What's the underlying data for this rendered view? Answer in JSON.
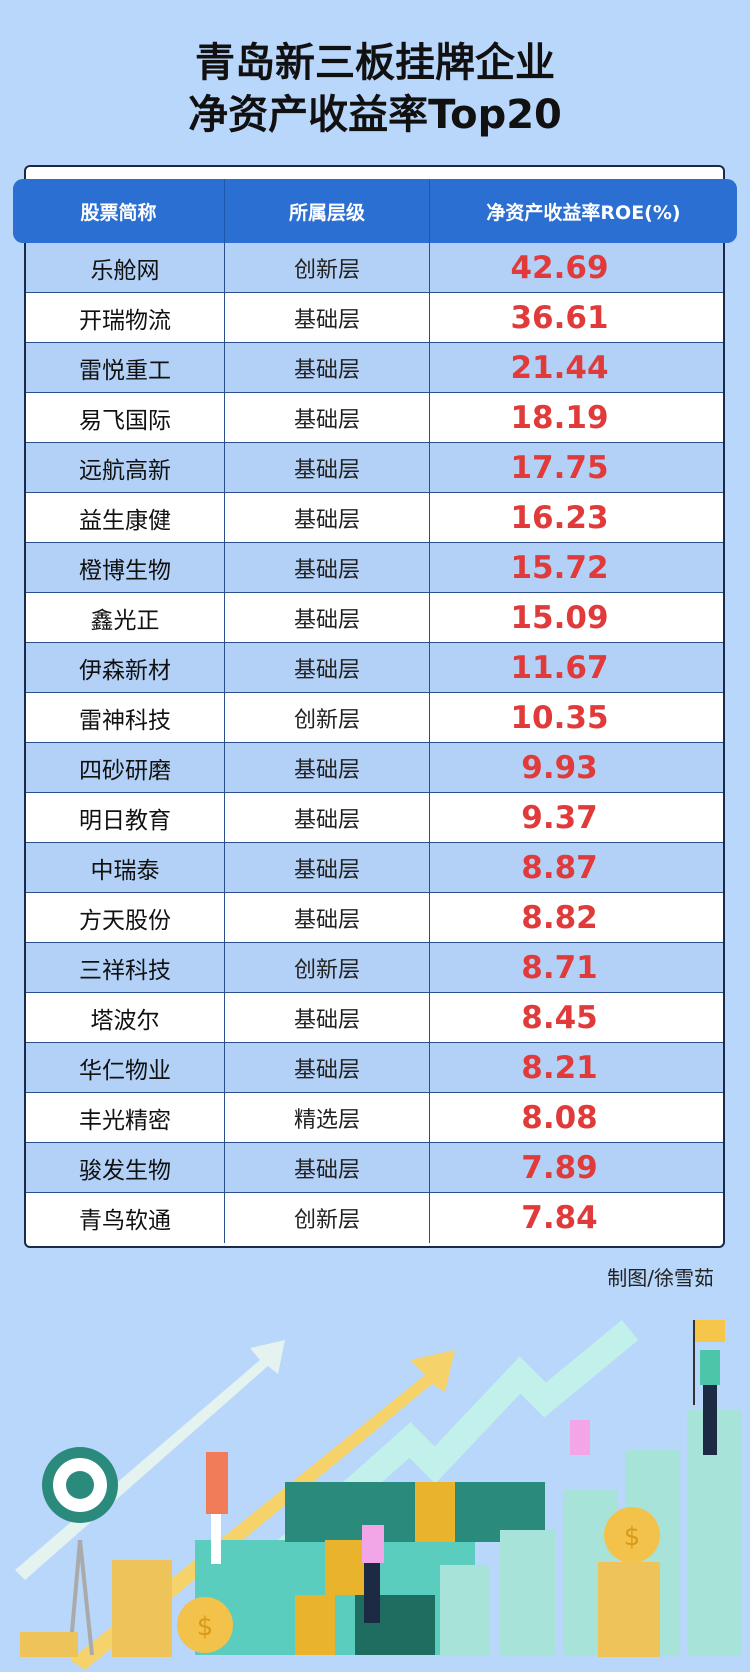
{
  "title": {
    "line1": "青岛新三板挂牌企业",
    "line2": "净资产收益率Top20"
  },
  "table": {
    "headers": [
      "股票简称",
      "所属层级",
      "净资产收益率ROE(%)"
    ],
    "rows": [
      {
        "name": "乐舱网",
        "tier": "创新层",
        "roe": "42.69"
      },
      {
        "name": "开瑞物流",
        "tier": "基础层",
        "roe": "36.61"
      },
      {
        "name": "雷悦重工",
        "tier": "基础层",
        "roe": "21.44"
      },
      {
        "name": "易飞国际",
        "tier": "基础层",
        "roe": "18.19"
      },
      {
        "name": "远航高新",
        "tier": "基础层",
        "roe": "17.75"
      },
      {
        "name": "益生康健",
        "tier": "基础层",
        "roe": "16.23"
      },
      {
        "name": "橙博生物",
        "tier": "基础层",
        "roe": "15.72"
      },
      {
        "name": "鑫光正",
        "tier": "基础层",
        "roe": "15.09"
      },
      {
        "name": "伊森新材",
        "tier": "基础层",
        "roe": "11.67"
      },
      {
        "name": "雷神科技",
        "tier": "创新层",
        "roe": "10.35"
      },
      {
        "name": "四砂研磨",
        "tier": "基础层",
        "roe": "9.93"
      },
      {
        "name": "明日教育",
        "tier": "基础层",
        "roe": "9.37"
      },
      {
        "name": "中瑞泰",
        "tier": "基础层",
        "roe": "8.87"
      },
      {
        "name": "方天股份",
        "tier": "基础层",
        "roe": "8.82"
      },
      {
        "name": "三祥科技",
        "tier": "创新层",
        "roe": "8.71"
      },
      {
        "name": "塔波尔",
        "tier": "基础层",
        "roe": "8.45"
      },
      {
        "name": "华仁物业",
        "tier": "基础层",
        "roe": "8.21"
      },
      {
        "name": "丰光精密",
        "tier": "精选层",
        "roe": "8.08"
      },
      {
        "name": "骏发生物",
        "tier": "基础层",
        "roe": "7.89"
      },
      {
        "name": "青鸟软通",
        "tier": "创新层",
        "roe": "7.84"
      }
    ]
  },
  "credit": "制图/徐雪茹",
  "colors": {
    "background": "#b9d6fb",
    "header": "#2a6fd1",
    "value": "#e03a3a",
    "row_alt": "#b3d1f7"
  }
}
